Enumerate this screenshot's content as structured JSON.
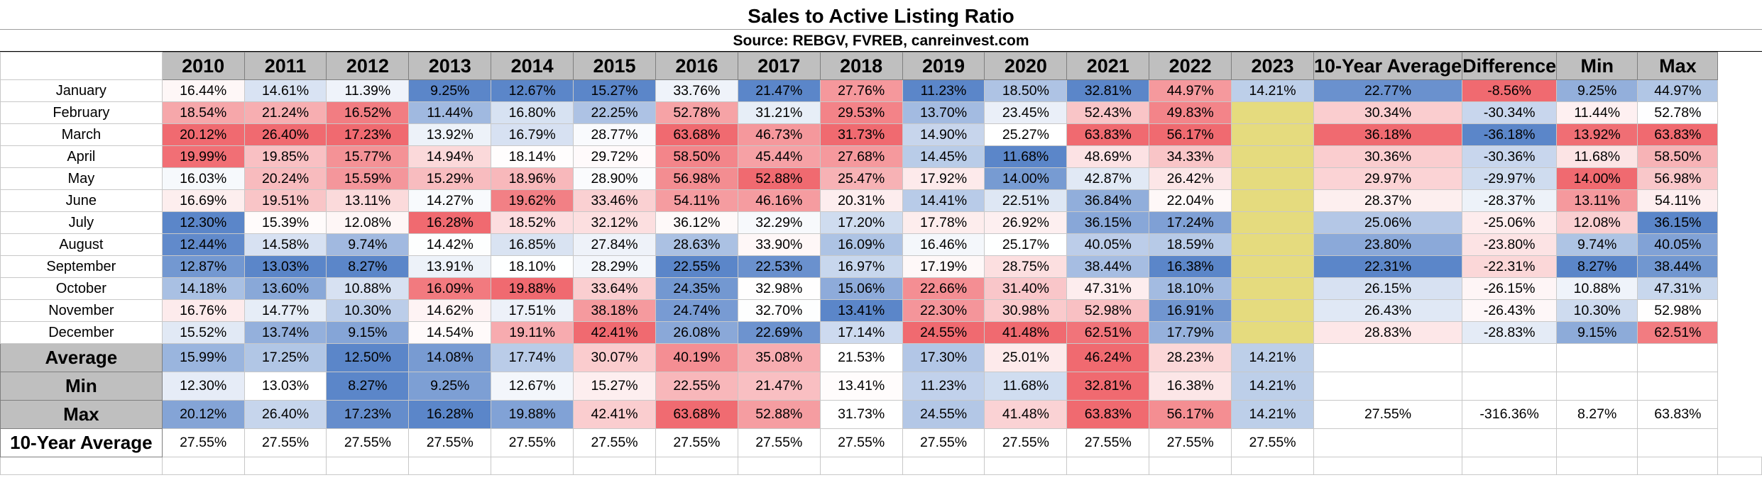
{
  "title": "Sales to Active Listing Ratio",
  "source": "Source: REBGV, FVREB, canreinvest.com",
  "years": [
    "2010",
    "2011",
    "2012",
    "2013",
    "2014",
    "2015",
    "2016",
    "2017",
    "2018",
    "2019",
    "2020",
    "2021",
    "2022",
    "2023"
  ],
  "extra_headers": [
    "10-Year Average",
    "Difference",
    "Min",
    "Max"
  ],
  "months": [
    {
      "label": "January",
      "values": [
        "16.44%",
        "14.61%",
        "11.39%",
        "9.25%",
        "12.67%",
        "15.27%",
        "33.76%",
        "21.47%",
        "27.76%",
        "11.23%",
        "18.50%",
        "32.81%",
        "44.97%",
        "14.21%"
      ],
      "avg": "22.77%",
      "diff": "-8.56%",
      "min": "9.25%",
      "max": "44.97%"
    },
    {
      "label": "February",
      "values": [
        "18.54%",
        "21.24%",
        "16.52%",
        "11.44%",
        "16.80%",
        "22.25%",
        "52.78%",
        "31.21%",
        "29.53%",
        "13.70%",
        "23.45%",
        "52.43%",
        "49.83%",
        ""
      ],
      "avg": "30.34%",
      "diff": "-30.34%",
      "min": "11.44%",
      "max": "52.78%"
    },
    {
      "label": "March",
      "values": [
        "20.12%",
        "26.40%",
        "17.23%",
        "13.92%",
        "16.79%",
        "28.77%",
        "63.68%",
        "46.73%",
        "31.73%",
        "14.90%",
        "25.27%",
        "63.83%",
        "56.17%",
        ""
      ],
      "avg": "36.18%",
      "diff": "-36.18%",
      "min": "13.92%",
      "max": "63.83%"
    },
    {
      "label": "April",
      "values": [
        "19.99%",
        "19.85%",
        "15.77%",
        "14.94%",
        "18.14%",
        "29.72%",
        "58.50%",
        "45.44%",
        "27.68%",
        "14.45%",
        "11.68%",
        "48.69%",
        "34.33%",
        ""
      ],
      "avg": "30.36%",
      "diff": "-30.36%",
      "min": "11.68%",
      "max": "58.50%"
    },
    {
      "label": "May",
      "values": [
        "16.03%",
        "20.24%",
        "15.59%",
        "15.29%",
        "18.96%",
        "28.90%",
        "56.98%",
        "52.88%",
        "25.47%",
        "17.92%",
        "14.00%",
        "42.87%",
        "26.42%",
        ""
      ],
      "avg": "29.97%",
      "diff": "-29.97%",
      "min": "14.00%",
      "max": "56.98%"
    },
    {
      "label": "June",
      "values": [
        "16.69%",
        "19.51%",
        "13.11%",
        "14.27%",
        "19.62%",
        "33.46%",
        "54.11%",
        "46.16%",
        "20.31%",
        "14.41%",
        "22.51%",
        "36.84%",
        "22.04%",
        ""
      ],
      "avg": "28.37%",
      "diff": "-28.37%",
      "min": "13.11%",
      "max": "54.11%"
    },
    {
      "label": "July",
      "values": [
        "12.30%",
        "15.39%",
        "12.08%",
        "16.28%",
        "18.52%",
        "32.12%",
        "36.12%",
        "32.29%",
        "17.20%",
        "17.78%",
        "26.92%",
        "36.15%",
        "17.24%",
        ""
      ],
      "avg": "25.06%",
      "diff": "-25.06%",
      "min": "12.08%",
      "max": "36.15%"
    },
    {
      "label": "August",
      "values": [
        "12.44%",
        "14.58%",
        "9.74%",
        "14.42%",
        "16.85%",
        "27.84%",
        "28.63%",
        "33.90%",
        "16.09%",
        "16.46%",
        "25.17%",
        "40.05%",
        "18.59%",
        ""
      ],
      "avg": "23.80%",
      "diff": "-23.80%",
      "min": "9.74%",
      "max": "40.05%"
    },
    {
      "label": "September",
      "values": [
        "12.87%",
        "13.03%",
        "8.27%",
        "13.91%",
        "18.10%",
        "28.29%",
        "22.55%",
        "22.53%",
        "16.97%",
        "17.19%",
        "28.75%",
        "38.44%",
        "16.38%",
        ""
      ],
      "avg": "22.31%",
      "diff": "-22.31%",
      "min": "8.27%",
      "max": "38.44%"
    },
    {
      "label": "October",
      "values": [
        "14.18%",
        "13.60%",
        "10.88%",
        "16.09%",
        "19.88%",
        "33.64%",
        "24.35%",
        "32.98%",
        "15.06%",
        "22.66%",
        "31.40%",
        "47.31%",
        "18.10%",
        ""
      ],
      "avg": "26.15%",
      "diff": "-26.15%",
      "min": "10.88%",
      "max": "47.31%"
    },
    {
      "label": "November",
      "values": [
        "16.76%",
        "14.77%",
        "10.30%",
        "14.62%",
        "17.51%",
        "38.18%",
        "24.74%",
        "32.70%",
        "13.41%",
        "22.30%",
        "30.98%",
        "52.98%",
        "16.91%",
        ""
      ],
      "avg": "26.43%",
      "diff": "-26.43%",
      "min": "10.30%",
      "max": "52.98%"
    },
    {
      "label": "December",
      "values": [
        "15.52%",
        "13.74%",
        "9.15%",
        "14.54%",
        "19.11%",
        "42.41%",
        "26.08%",
        "22.69%",
        "17.14%",
        "24.55%",
        "41.48%",
        "62.51%",
        "17.79%",
        ""
      ],
      "avg": "28.83%",
      "diff": "-28.83%",
      "min": "9.15%",
      "max": "62.51%"
    }
  ],
  "summary": [
    {
      "label": "Average",
      "values": [
        "15.99%",
        "17.25%",
        "12.50%",
        "14.08%",
        "17.74%",
        "30.07%",
        "40.19%",
        "35.08%",
        "21.53%",
        "17.30%",
        "25.01%",
        "46.24%",
        "28.23%",
        "14.21%"
      ],
      "extra": [
        "",
        "",
        "",
        ""
      ]
    },
    {
      "label": "Min",
      "values": [
        "12.30%",
        "13.03%",
        "8.27%",
        "9.25%",
        "12.67%",
        "15.27%",
        "22.55%",
        "21.47%",
        "13.41%",
        "11.23%",
        "11.68%",
        "32.81%",
        "16.38%",
        "14.21%"
      ],
      "extra": [
        "",
        "",
        "",
        ""
      ]
    },
    {
      "label": "Max",
      "values": [
        "20.12%",
        "26.40%",
        "17.23%",
        "16.28%",
        "19.88%",
        "42.41%",
        "63.68%",
        "52.88%",
        "31.73%",
        "24.55%",
        "41.48%",
        "63.83%",
        "56.17%",
        "14.21%"
      ],
      "extra": [
        "27.55%",
        "-316.36%",
        "8.27%",
        "63.83%"
      ]
    },
    {
      "label": "10-Year Average",
      "values": [
        "27.55%",
        "27.55%",
        "27.55%",
        "27.55%",
        "27.55%",
        "27.55%",
        "27.55%",
        "27.55%",
        "27.55%",
        "27.55%",
        "27.55%",
        "27.55%",
        "27.55%",
        "27.55%"
      ],
      "extra": [
        "",
        "",
        "",
        ""
      ]
    }
  ],
  "colors": {
    "blue_strong": "#5b86c9",
    "white": "#ffffff",
    "red_strong": "#f06a70",
    "highlight_yellow": "#e5db7e",
    "header_gray": "#bfbfbf"
  }
}
